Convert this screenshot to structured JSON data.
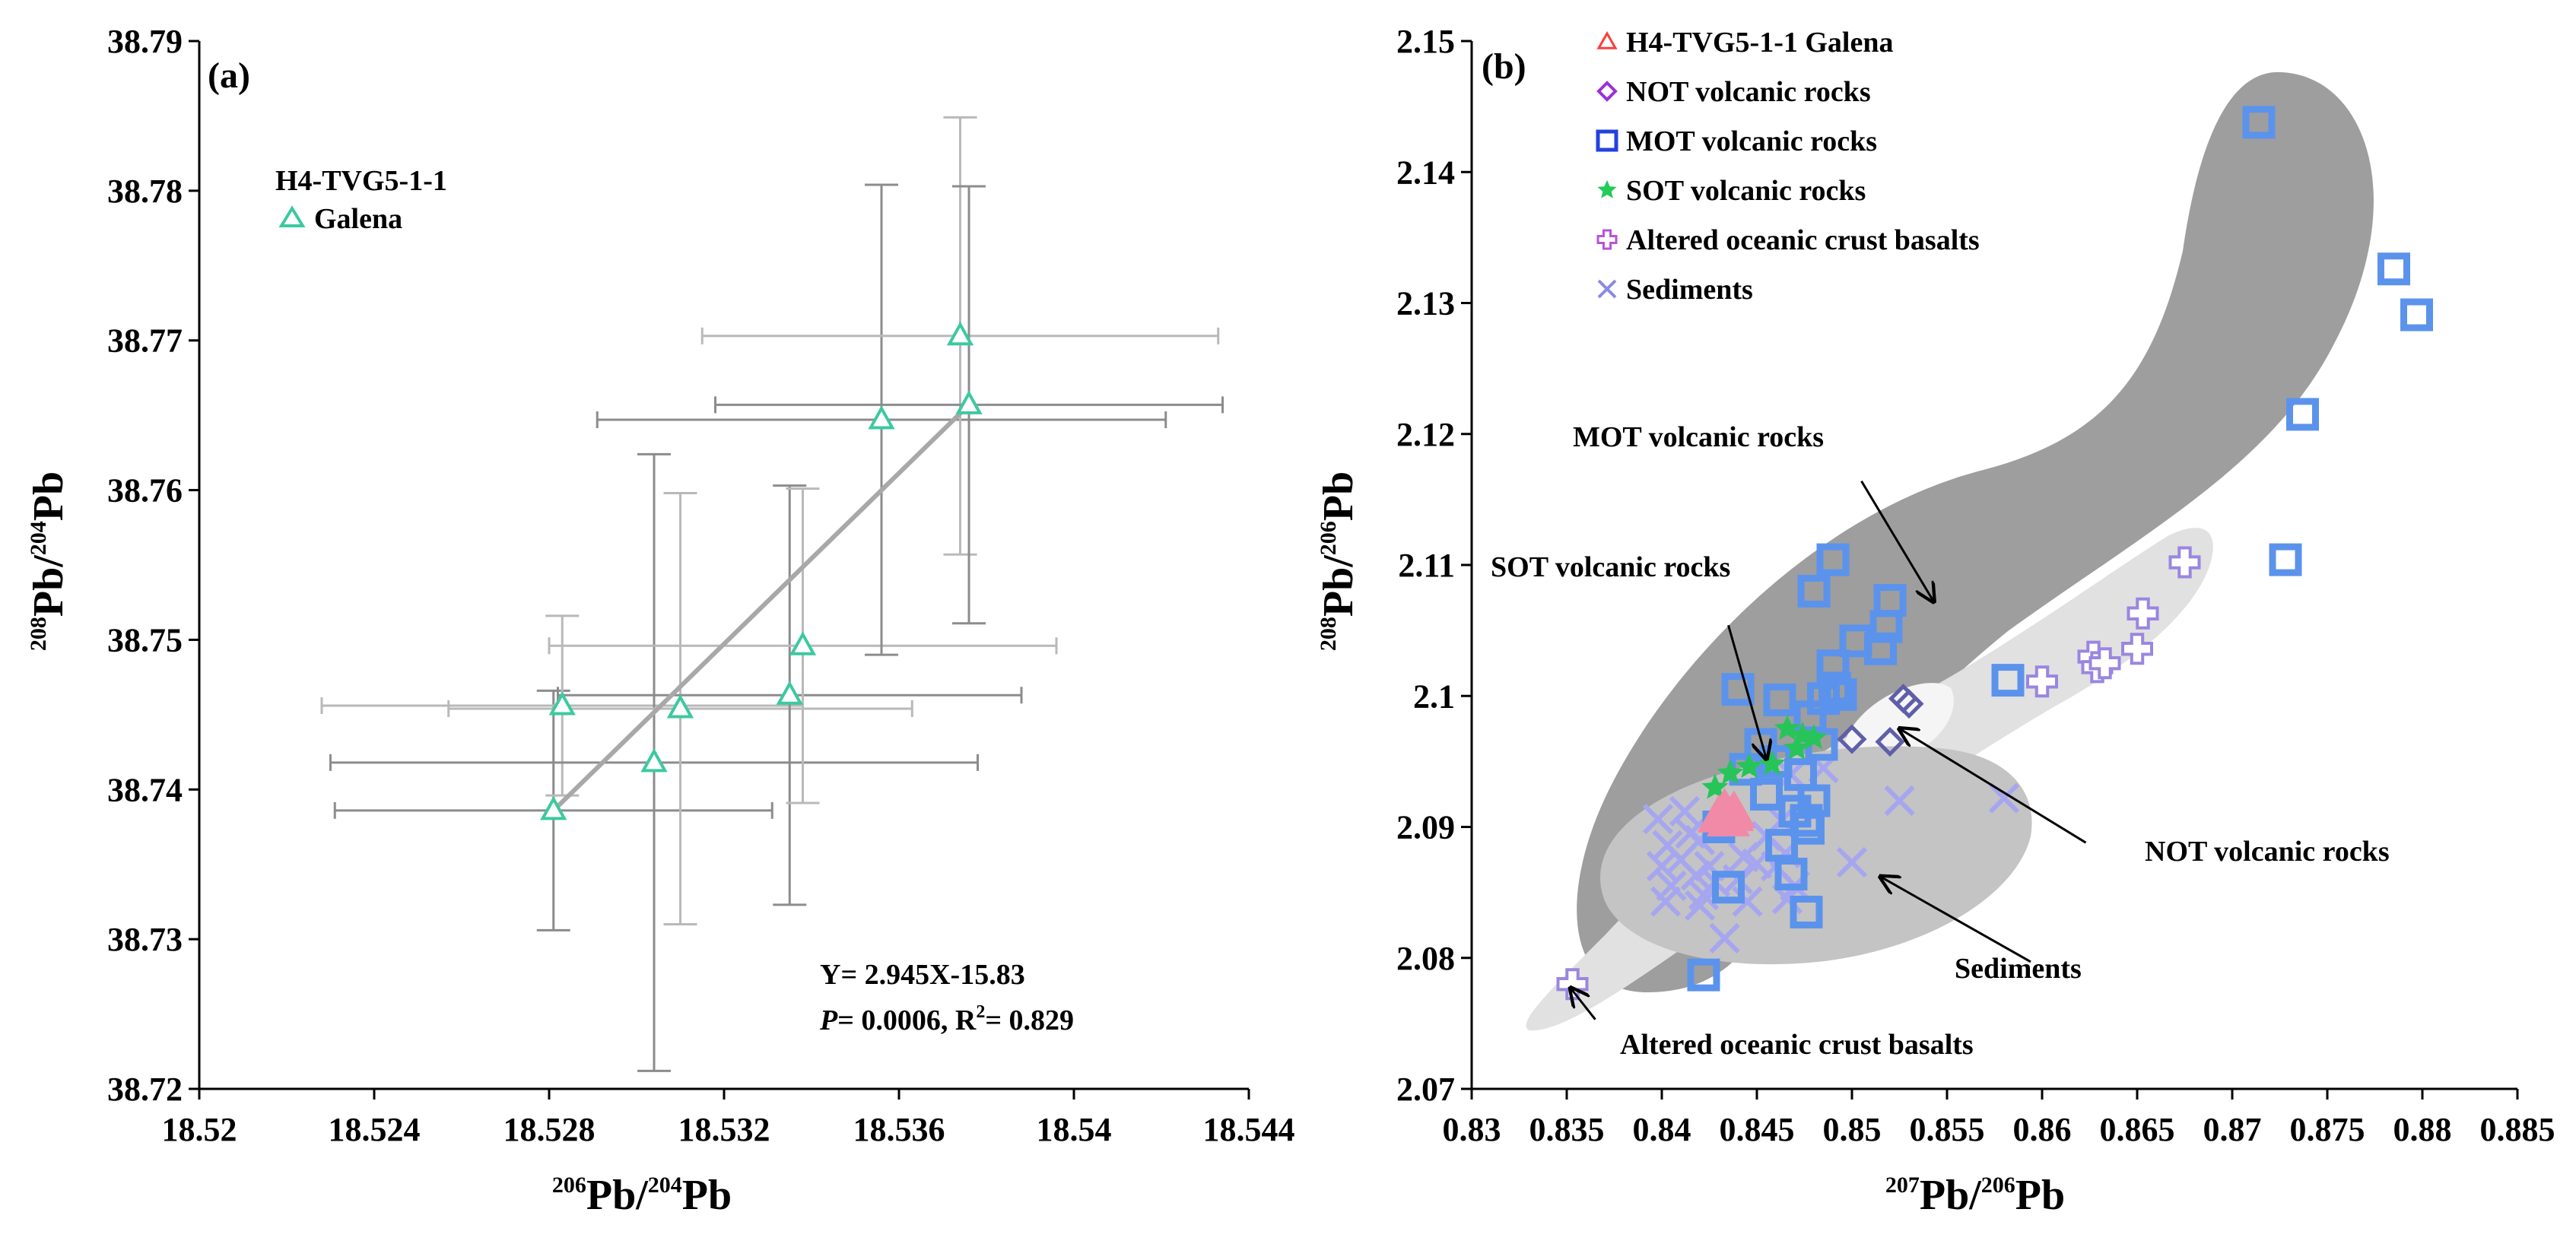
{
  "chart_data": [
    {
      "panel": "(a)",
      "type": "scatter",
      "title": "",
      "xlabel": {
        "sup": "206",
        "base": "Pb/",
        "sup2": "204",
        "base2": "Pb"
      },
      "ylabel": {
        "sup": "208",
        "base": "Pb/",
        "sup2": "204",
        "base2": "Pb"
      },
      "xlim": [
        18.52,
        18.544
      ],
      "ylim": [
        38.72,
        38.79
      ],
      "xticks": [
        "18.52",
        "18.524",
        "18.528",
        "18.532",
        "18.536",
        "18.54",
        "18.544"
      ],
      "yticks": [
        "38.72",
        "38.73",
        "38.74",
        "38.75",
        "38.76",
        "38.77",
        "38.78",
        "38.79"
      ],
      "legend": {
        "group": "H4-TVG5-1-1",
        "entry": "Galena",
        "color": "#3cc9a0"
      },
      "series": [
        {
          "name": "Galena",
          "color": "#3cc9a0",
          "points": [
            {
              "x": 18.5281,
              "y": 38.7386,
              "xerr": 0.005,
              "yerr": 0.008
            },
            {
              "x": 18.5283,
              "y": 38.7456,
              "xerr": 0.0055,
              "yerr": 0.006
            },
            {
              "x": 18.5304,
              "y": 38.7418,
              "xerr": 0.0074,
              "yerr": 0.0206
            },
            {
              "x": 18.531,
              "y": 38.7454,
              "xerr": 0.0053,
              "yerr": 0.0144
            },
            {
              "x": 18.5335,
              "y": 38.7463,
              "xerr": 0.0053,
              "yerr": 0.014
            },
            {
              "x": 18.5338,
              "y": 38.7496,
              "xerr": 0.0058,
              "yerr": 0.0105
            },
            {
              "x": 18.5356,
              "y": 38.7647,
              "xerr": 0.0065,
              "yerr": 0.0157
            },
            {
              "x": 18.5374,
              "y": 38.7703,
              "xerr": 0.0059,
              "yerr": 0.0146
            },
            {
              "x": 18.5376,
              "y": 38.7657,
              "xerr": 0.0058,
              "yerr": 0.0146
            }
          ]
        }
      ],
      "regression": {
        "x": [
          18.5281,
          18.5376
        ],
        "y": [
          38.7386,
          38.7657
        ],
        "color": "#a8a8a8"
      },
      "annotation": {
        "line1": "Y= 2.945X-15.83",
        "p_label": "P",
        "line2": "= 0.0006, R",
        "r_sup": "2",
        "line3": "= 0.829"
      }
    },
    {
      "panel": "(b)",
      "type": "scatter",
      "title": "",
      "xlabel": {
        "sup": "207",
        "base": "Pb/",
        "sup2": "206",
        "base2": "Pb"
      },
      "ylabel": {
        "sup": "208",
        "base": "Pb/",
        "sup2": "206",
        "base2": "Pb"
      },
      "xlim": [
        0.83,
        0.885
      ],
      "ylim": [
        2.07,
        2.15
      ],
      "xticks": [
        "0.83",
        "0.835",
        "0.84",
        "0.845",
        "0.85",
        "0.855",
        "0.86",
        "0.865",
        "0.87",
        "0.875",
        "0.88",
        "0.885"
      ],
      "yticks": [
        "2.07",
        "2.08",
        "2.09",
        "2.1",
        "2.11",
        "2.12",
        "2.13",
        "2.14",
        "2.15"
      ],
      "legend": [
        {
          "label": "H4-TVG5-1-1 Galena",
          "marker": "triangle",
          "color": "#ff3b3b"
        },
        {
          "label": "NOT volcanic rocks",
          "marker": "diamond",
          "color": "#9b30d9"
        },
        {
          "label": "MOT volcanic rocks",
          "marker": "square",
          "color": "#2341e0"
        },
        {
          "label": "SOT volcanic rocks",
          "marker": "star",
          "color": "#22cc55"
        },
        {
          "label": "Altered oceanic crust basalts",
          "marker": "cross",
          "color": "#b455d6"
        },
        {
          "label": "Sediments",
          "marker": "x",
          "color": "#8a8ae6"
        }
      ],
      "field_labels": [
        {
          "text": "MOT volcanic rocks",
          "from": [
            0.8505,
            2.1164
          ],
          "to": [
            0.8543,
            2.1072
          ]
        },
        {
          "text": "SOT volcanic rocks",
          "from": [
            0.8435,
            2.1054
          ],
          "to": [
            0.8455,
            2.0952
          ]
        },
        {
          "text": "NOT volcanic rocks",
          "from": [
            0.8623,
            2.0888
          ],
          "to": [
            0.8525,
            2.0975
          ]
        },
        {
          "text": "Sediments",
          "from": [
            0.8594,
            2.0797
          ],
          "to": [
            0.8515,
            2.0862
          ]
        },
        {
          "text": "Altered oceanic crust basalts",
          "from": [
            0.8365,
            2.0753
          ],
          "to": [
            0.8352,
            2.0777
          ]
        }
      ],
      "series": [
        {
          "name": "MOT volcanic rocks",
          "marker": "square",
          "color": "#5b93ec",
          "points": [
            [
              0.8714,
              2.1438
            ],
            [
              0.8785,
              2.1326
            ],
            [
              0.8797,
              2.1291
            ],
            [
              0.8737,
              2.1215
            ],
            [
              0.8728,
              2.1104
            ],
            [
              0.849,
              2.1104
            ],
            [
              0.848,
              2.108
            ],
            [
              0.852,
              2.1073
            ],
            [
              0.8518,
              2.1053
            ],
            [
              0.8515,
              2.1036
            ],
            [
              0.8502,
              2.1042
            ],
            [
              0.849,
              2.1023
            ],
            [
              0.8491,
              2.1006
            ],
            [
              0.8494,
              2.1001
            ],
            [
              0.8485,
              2.0998
            ],
            [
              0.8462,
              2.0997
            ],
            [
              0.844,
              2.1005
            ],
            [
              0.8478,
              2.0984
            ],
            [
              0.8484,
              2.0963
            ],
            [
              0.8582,
              2.1012
            ],
            [
              0.8444,
              2.0944
            ],
            [
              0.8452,
              2.0963
            ],
            [
              0.846,
              2.095
            ],
            [
              0.8473,
              2.094
            ],
            [
              0.848,
              2.092
            ],
            [
              0.8476,
              2.0905
            ],
            [
              0.8477,
              2.0899
            ],
            [
              0.847,
              2.0912
            ],
            [
              0.8463,
              2.0886
            ],
            [
              0.8468,
              2.0864
            ],
            [
              0.8476,
              2.0835
            ],
            [
              0.8435,
              2.0854
            ],
            [
              0.8422,
              2.0787
            ],
            [
              0.843,
              2.09
            ],
            [
              0.8455,
              2.0925
            ]
          ]
        },
        {
          "name": "NOT volcanic rocks",
          "marker": "diamond",
          "color": "#5e5eaa",
          "points": [
            [
              0.8527,
              2.0998
            ],
            [
              0.853,
              2.0994
            ],
            [
              0.852,
              2.0965
            ],
            [
              0.85,
              2.0967
            ]
          ]
        },
        {
          "name": "SOT volcanic rocks",
          "marker": "star",
          "color": "#27c45a",
          "points": [
            [
              0.8466,
              2.0975
            ],
            [
              0.8474,
              2.097
            ],
            [
              0.848,
              2.0968
            ],
            [
              0.8471,
              2.096
            ],
            [
              0.8458,
              2.0948
            ],
            [
              0.8446,
              2.0946
            ],
            [
              0.8436,
              2.0941
            ],
            [
              0.8428,
              2.093
            ]
          ]
        },
        {
          "name": "H4-TVG5-1-1 Galena",
          "marker": "triangle",
          "color": "#f08aa6",
          "points": [
            [
              0.8433,
              2.0913
            ],
            [
              0.8437,
              2.0909
            ],
            [
              0.843,
              2.0908
            ],
            [
              0.8435,
              2.0905
            ],
            [
              0.8438,
              2.0911
            ]
          ]
        },
        {
          "name": "Altered oceanic crust basalts",
          "marker": "cross",
          "color": "#c0b0ef",
          "points": [
            [
              0.8353,
              2.078
            ],
            [
              0.86,
              2.1011
            ],
            [
              0.8627,
              2.103
            ],
            [
              0.8629,
              2.1022
            ],
            [
              0.8633,
              2.1025
            ],
            [
              0.865,
              2.1036
            ],
            [
              0.8653,
              2.1063
            ],
            [
              0.8675,
              2.1102
            ]
          ]
        },
        {
          "name": "Sediments",
          "marker": "x",
          "color": "#a6a6f0",
          "points": [
            [
              0.8398,
              2.0906
            ],
            [
              0.8403,
              2.0886
            ],
            [
              0.84,
              2.087
            ],
            [
              0.8405,
              2.0855
            ],
            [
              0.8402,
              2.0843
            ],
            [
              0.841,
              2.0875
            ],
            [
              0.8415,
              2.0895
            ],
            [
              0.842,
              2.089
            ],
            [
              0.8418,
              2.0863
            ],
            [
              0.8422,
              2.0848
            ],
            [
              0.8425,
              2.087
            ],
            [
              0.8428,
              2.0858
            ],
            [
              0.842,
              2.084
            ],
            [
              0.8433,
              2.0815
            ],
            [
              0.844,
              2.086
            ],
            [
              0.8443,
              2.0877
            ],
            [
              0.845,
              2.0872
            ],
            [
              0.8455,
              2.0893
            ],
            [
              0.846,
              2.087
            ],
            [
              0.8465,
              2.088
            ],
            [
              0.8463,
              2.0905
            ],
            [
              0.8468,
              2.094
            ],
            [
              0.847,
              2.0855
            ],
            [
              0.8466,
              2.0845
            ],
            [
              0.8485,
              2.0945
            ],
            [
              0.85,
              2.0873
            ],
            [
              0.8525,
              2.092
            ],
            [
              0.858,
              2.0922
            ],
            [
              0.8412,
              2.0912
            ],
            [
              0.8445,
              2.0843
            ]
          ]
        }
      ]
    }
  ]
}
